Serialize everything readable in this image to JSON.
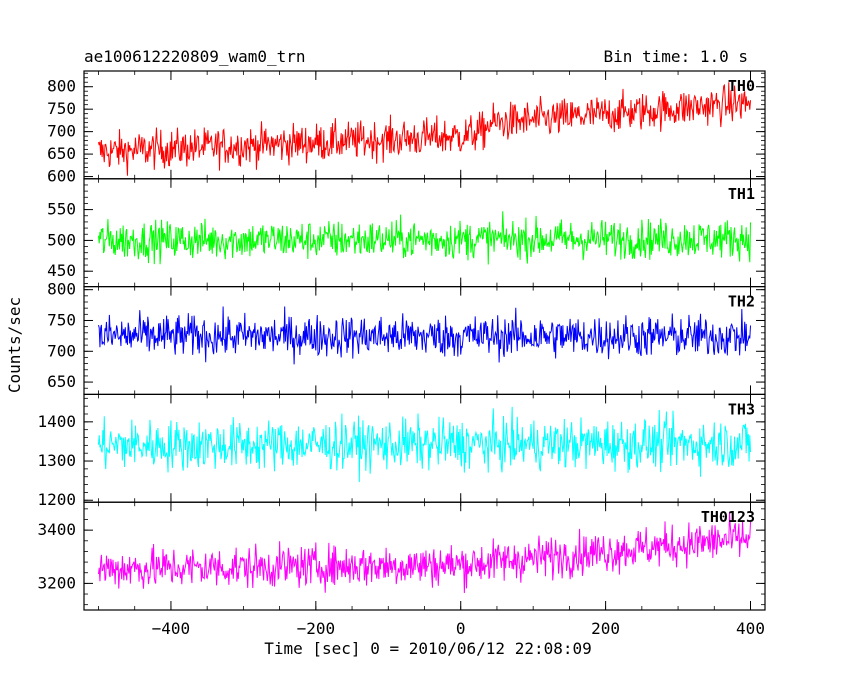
{
  "header": {
    "title": "ae100612220809_wam0_trn",
    "bin_time": "Bin time: 1.0 s"
  },
  "axes": {
    "xlabel": "Time [sec] 0 = 2010/06/12 22:08:09",
    "ylabel": "Counts/sec"
  },
  "chart_data": {
    "type": "line",
    "title": "ae100612220809_wam0_trn",
    "subtitle": "Bin time: 1.0 s",
    "xlabel": "Time [sec] 0 = 2010/06/12 22:08:09",
    "ylabel": "Counts/sec",
    "xlim": [
      -520,
      420
    ],
    "x_start": -500,
    "x_end": 400,
    "x_step": 1,
    "x_ticks": [
      -400,
      -200,
      0,
      200,
      400
    ],
    "x_tick_labels": [
      "−400",
      "−200",
      "0",
      "200",
      "400"
    ],
    "panels": [
      {
        "name": "TH0",
        "color": "#ff0000",
        "ylim": [
          595,
          835
        ],
        "y_ticks": [
          600,
          650,
          700,
          750,
          800
        ],
        "trend": [
          [
            -500,
            655
          ],
          [
            0,
            690
          ],
          [
            30,
            700
          ],
          [
            40,
            718
          ],
          [
            400,
            765
          ]
        ],
        "noise": 30
      },
      {
        "name": "TH1",
        "color": "#00ff00",
        "ylim": [
          425,
          600
        ],
        "y_ticks": [
          450,
          500,
          550
        ],
        "trend": [
          [
            -500,
            500
          ],
          [
            400,
            503
          ]
        ],
        "noise": 22
      },
      {
        "name": "TH2",
        "color": "#0000ff",
        "ylim": [
          630,
          805
        ],
        "y_ticks": [
          650,
          700,
          750,
          800
        ],
        "trend": [
          [
            -500,
            725
          ],
          [
            400,
            724
          ]
        ],
        "noise": 24
      },
      {
        "name": "TH3",
        "color": "#00ffff",
        "ylim": [
          1195,
          1470
        ],
        "y_ticks": [
          1200,
          1300,
          1400
        ],
        "trend": [
          [
            -500,
            1340
          ],
          [
            400,
            1345
          ]
        ],
        "noise": 45
      },
      {
        "name": "TH0123",
        "color": "#ff00ff",
        "ylim": [
          3100,
          3505
        ],
        "y_ticks": [
          3200,
          3400
        ],
        "trend": [
          [
            -500,
            3255
          ],
          [
            0,
            3270
          ],
          [
            400,
            3370
          ]
        ],
        "noise": 55
      }
    ]
  }
}
